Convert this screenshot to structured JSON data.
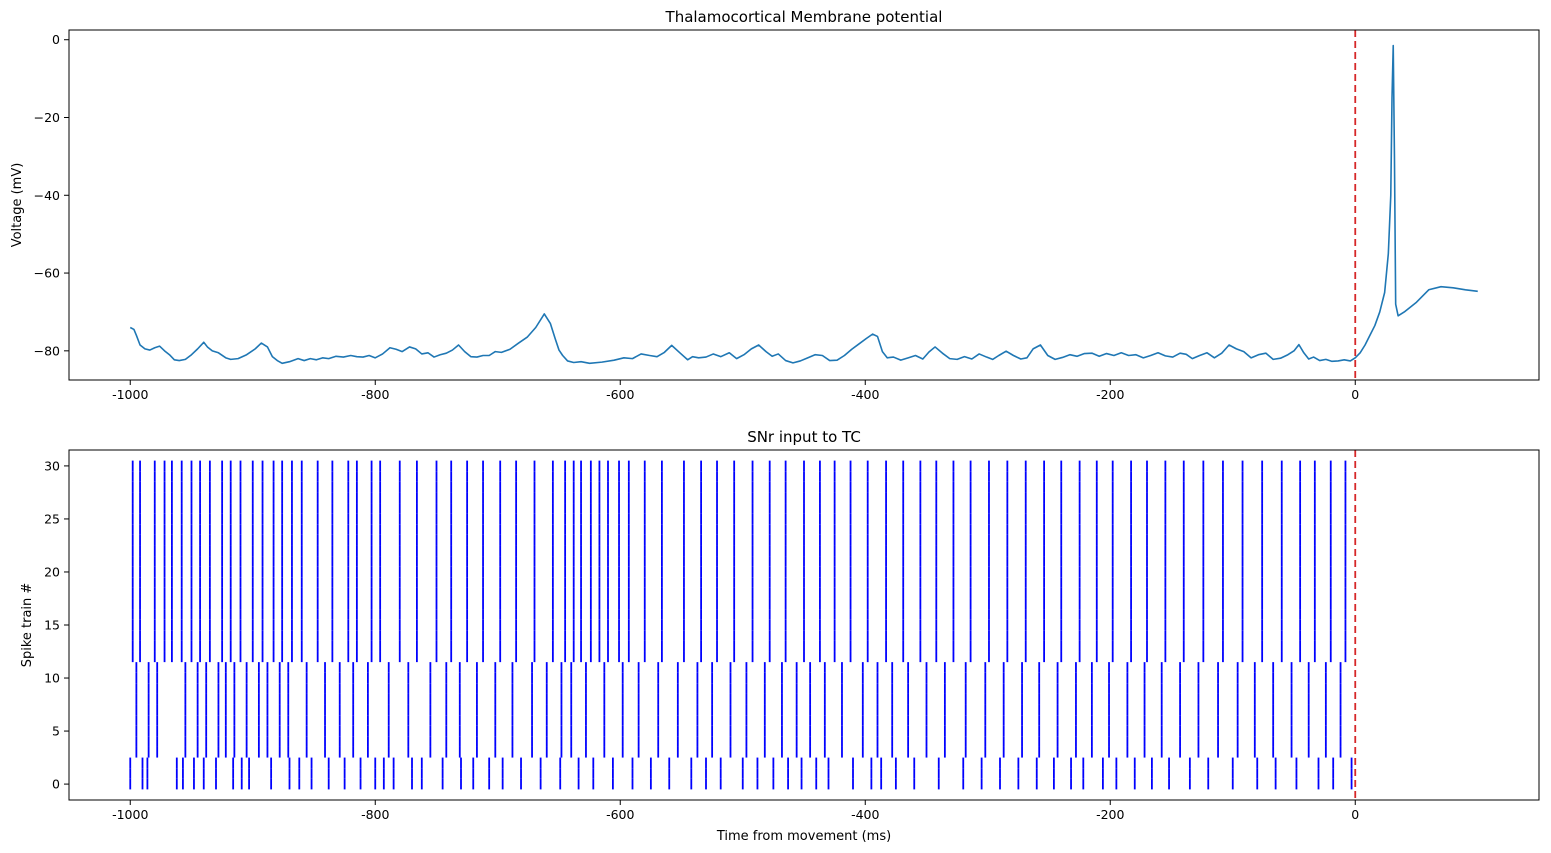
{
  "chart_data": [
    {
      "type": "line",
      "title": "Thalamocortical Membrane potential",
      "xlabel": "",
      "ylabel": "Voltage (mV)",
      "xlim": [
        -1050,
        150
      ],
      "ylim": [
        -87.5,
        2.5
      ],
      "xticks": [
        -1000,
        -800,
        -600,
        -400,
        -200,
        0
      ],
      "xtick_labels": [
        "-1000",
        "-800",
        "-600",
        "-400",
        "-200",
        "0"
      ],
      "yticks": [
        0,
        -20,
        -40,
        -60,
        -80
      ],
      "ytick_labels": [
        "0",
        "−20",
        "−40",
        "−60",
        "−80"
      ],
      "grid": false,
      "line_color": "#1f77b4",
      "marker_line": {
        "x": 0,
        "color": "#d62728",
        "style": "dashed"
      },
      "series": [
        {
          "x": [
            -1000,
            -997,
            -995,
            -992,
            -988,
            -984,
            -980,
            -976,
            -972,
            -968,
            -964,
            -960,
            -955,
            -950,
            -945,
            -940,
            -937,
            -933,
            -928,
            -922,
            -918,
            -912,
            -905,
            -898,
            -893,
            -888,
            -884,
            -880,
            -876,
            -870,
            -863,
            -858,
            -853,
            -848,
            -843,
            -838,
            -832,
            -826,
            -820,
            -815,
            -810,
            -805,
            -800,
            -794,
            -788,
            -783,
            -778,
            -772,
            -767,
            -762,
            -757,
            -752,
            -747,
            -742,
            -737,
            -732,
            -727,
            -722,
            -717,
            -712,
            -707,
            -702,
            -697,
            -690,
            -683,
            -676,
            -669,
            -662,
            -657,
            -653,
            -650,
            -647,
            -643,
            -638,
            -632,
            -625,
            -615,
            -605,
            -597,
            -590,
            -583,
            -576,
            -570,
            -564,
            -558,
            -551,
            -545,
            -541,
            -536,
            -530,
            -524,
            -518,
            -511,
            -505,
            -499,
            -493,
            -487,
            -481,
            -476,
            -471,
            -465,
            -459,
            -453,
            -447,
            -441,
            -435,
            -429,
            -423,
            -417,
            -411,
            -405,
            -399,
            -394,
            -390,
            -386,
            -382,
            -377,
            -371,
            -365,
            -359,
            -353,
            -348,
            -343,
            -337,
            -331,
            -325,
            -319,
            -313,
            -307,
            -301,
            -296,
            -291,
            -285,
            -279,
            -273,
            -268,
            -263,
            -257,
            -251,
            -245,
            -239,
            -233,
            -227,
            -221,
            -215,
            -209,
            -203,
            -197,
            -191,
            -185,
            -179,
            -173,
            -167,
            -161,
            -155,
            -149,
            -143,
            -138,
            -133,
            -127,
            -121,
            -115,
            -109,
            -103,
            -97,
            -91,
            -85,
            -79,
            -73,
            -67,
            -61,
            -55,
            -50,
            -46,
            -42,
            -38,
            -34,
            -29,
            -24,
            -19,
            -14,
            -9,
            -4,
            0,
            4,
            8,
            12,
            16,
            20,
            24,
            27,
            29,
            30,
            31,
            32,
            33,
            35,
            40,
            50,
            60,
            70,
            80,
            90,
            100
          ],
          "y": [
            -74,
            -74.5,
            -76,
            -78.5,
            -79.5,
            -79.8,
            -79.2,
            -78.8,
            -80,
            -81,
            -82.3,
            -82.5,
            -82.2,
            -81,
            -79.5,
            -77.8,
            -79,
            -80,
            -80.5,
            -81.8,
            -82.2,
            -82,
            -81,
            -79.5,
            -78,
            -79,
            -81.5,
            -82.5,
            -83.2,
            -82.8,
            -82,
            -82.5,
            -82,
            -82.3,
            -81.8,
            -82,
            -81.4,
            -81.6,
            -81.2,
            -81.5,
            -81.6,
            -81.2,
            -81.8,
            -80.8,
            -79.2,
            -79.6,
            -80.2,
            -79,
            -79.5,
            -80.8,
            -80.5,
            -81.6,
            -81,
            -80.6,
            -79.8,
            -78.5,
            -80.2,
            -81.5,
            -81.6,
            -81.2,
            -81.2,
            -80.2,
            -80.4,
            -79.6,
            -78,
            -76.5,
            -74,
            -70.5,
            -73,
            -77,
            -79.8,
            -81.2,
            -82.6,
            -83,
            -82.8,
            -83.2,
            -82.9,
            -82.4,
            -81.8,
            -82,
            -80.8,
            -81.2,
            -81.5,
            -80.4,
            -78.6,
            -80.6,
            -82.3,
            -81.5,
            -81.8,
            -81.6,
            -80.8,
            -81.5,
            -80.5,
            -82,
            -81,
            -79.5,
            -78.5,
            -80.2,
            -81.4,
            -80.8,
            -82.5,
            -83.1,
            -82.6,
            -81.8,
            -81,
            -81.2,
            -82.5,
            -82.4,
            -81.2,
            -79.6,
            -78.2,
            -76.8,
            -75.7,
            -76.3,
            -80.2,
            -81.8,
            -81.6,
            -82.4,
            -81.8,
            -81.2,
            -82.1,
            -80.3,
            -79,
            -80.6,
            -82,
            -82.2,
            -81.5,
            -82.1,
            -80.8,
            -81.6,
            -82.2,
            -81.2,
            -80.1,
            -81.2,
            -82.1,
            -81.8,
            -79.5,
            -78.5,
            -81.2,
            -82.2,
            -81.7,
            -81,
            -81.4,
            -80.7,
            -80.6,
            -81.4,
            -80.7,
            -81.2,
            -80.5,
            -81.2,
            -81,
            -81.8,
            -81.2,
            -80.5,
            -81.3,
            -81.6,
            -80.6,
            -80.9,
            -82,
            -81.2,
            -80.5,
            -81.8,
            -80.6,
            -78.5,
            -79.5,
            -80.2,
            -81.8,
            -81,
            -80.6,
            -82.2,
            -81.9,
            -81,
            -80,
            -78.4,
            -80.5,
            -82.1,
            -81.6,
            -82.5,
            -82.2,
            -82.7,
            -82.6,
            -82.3,
            -82.6,
            -81.8,
            -80.5,
            -78.5,
            -76,
            -73.5,
            -70,
            -65,
            -55,
            -40,
            -15,
            -1.5,
            -30,
            -68,
            -71,
            -70,
            -67.5,
            -64.3,
            -63.5,
            -63.8,
            -64.3,
            -64.7
          ]
        }
      ]
    },
    {
      "type": "scatter",
      "subtype": "raster",
      "title": "SNr input to TC",
      "xlabel": "Time from movement (ms)",
      "ylabel": "Spike train #",
      "xlim": [
        -1050,
        150
      ],
      "ylim": [
        -1.5,
        31.5
      ],
      "xticks": [
        -1000,
        -800,
        -600,
        -400,
        -200,
        0
      ],
      "xtick_labels": [
        "-1000",
        "-800",
        "-600",
        "-400",
        "-200",
        "0"
      ],
      "yticks": [
        0,
        5,
        10,
        15,
        20,
        25,
        30
      ],
      "ytick_labels": [
        "0",
        "5",
        "10",
        "15",
        "20",
        "25",
        "30"
      ],
      "grid": false,
      "spike_color": "#0000ff",
      "marker_line": {
        "x": 0,
        "color": "#d62728",
        "style": "dashed"
      },
      "train_groups": [
        {
          "trains": [
            0,
            1,
            2
          ],
          "spike_times": [
            -1000,
            -990,
            -986,
            -962,
            -957,
            -948,
            -940,
            -930,
            -916,
            -909,
            -903,
            -885,
            -870,
            -862,
            -852,
            -838,
            -825,
            -812,
            -800,
            -793,
            -785,
            -770,
            -762,
            -745,
            -730,
            -720,
            -707,
            -696,
            -681,
            -665,
            -649,
            -634,
            -622,
            -606,
            -590,
            -575,
            -560,
            -542,
            -530,
            -518,
            -500,
            -488,
            -475,
            -463,
            -452,
            -440,
            -430,
            -410,
            -395,
            -387,
            -375,
            -360,
            -340,
            -320,
            -305,
            -290,
            -275,
            -260,
            -246,
            -232,
            -222,
            -206,
            -195,
            -180,
            -166,
            -152,
            -135,
            -120,
            -100,
            -80,
            -65,
            -48,
            -30,
            -18,
            -3
          ]
        },
        {
          "trains": [
            3,
            4,
            5,
            6,
            7,
            8,
            9,
            10,
            11
          ],
          "spike_times": [
            -995,
            -985,
            -978,
            -955,
            -945,
            -938,
            -928,
            -922,
            -915,
            -905,
            -895,
            -888,
            -878,
            -871,
            -856,
            -841,
            -829,
            -818,
            -806,
            -789,
            -773,
            -755,
            -742,
            -731,
            -717,
            -702,
            -688,
            -672,
            -660,
            -648,
            -640,
            -628,
            -613,
            -598,
            -585,
            -569,
            -553,
            -537,
            -525,
            -510,
            -497,
            -482,
            -468,
            -456,
            -445,
            -433,
            -419,
            -402,
            -390,
            -378,
            -365,
            -350,
            -335,
            -318,
            -302,
            -287,
            -272,
            -258,
            -243,
            -228,
            -215,
            -201,
            -186,
            -172,
            -158,
            -143,
            -128,
            -112,
            -96,
            -82,
            -67,
            -52,
            -38,
            -24,
            -12
          ]
        },
        {
          "trains": [
            12,
            13,
            14,
            15,
            16,
            17,
            18,
            19,
            20,
            21,
            22,
            23,
            24,
            25,
            26,
            27,
            28,
            29,
            30
          ],
          "spike_times": [
            -998,
            -992,
            -980,
            -972,
            -966,
            -958,
            -950,
            -943,
            -935,
            -925,
            -918,
            -910,
            -900,
            -892,
            -883,
            -876,
            -868,
            -860,
            -847,
            -835,
            -822,
            -815,
            -803,
            -796,
            -780,
            -766,
            -750,
            -738,
            -725,
            -712,
            -698,
            -685,
            -670,
            -655,
            -645,
            -638,
            -632,
            -624,
            -617,
            -610,
            -601,
            -593,
            -580,
            -566,
            -548,
            -534,
            -521,
            -507,
            -492,
            -478,
            -465,
            -450,
            -437,
            -425,
            -412,
            -398,
            -383,
            -369,
            -355,
            -342,
            -328,
            -314,
            -299,
            -284,
            -269,
            -254,
            -240,
            -225,
            -211,
            -198,
            -183,
            -170,
            -155,
            -140,
            -124,
            -108,
            -92,
            -76,
            -60,
            -45,
            -33,
            -20,
            -8
          ]
        }
      ]
    }
  ]
}
